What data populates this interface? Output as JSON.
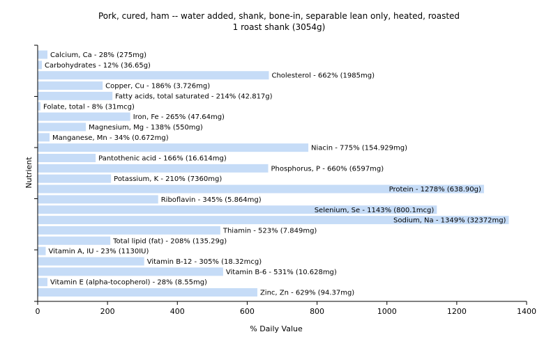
{
  "chart_data": {
    "type": "bar",
    "orientation": "horizontal",
    "title": "Pork, cured, ham -- water added, shank, bone-in, separable lean only, heated, roasted",
    "subtitle": "1 roast shank (3054g)",
    "xlabel": "% Daily Value",
    "ylabel": "Nutrient",
    "xlim": [
      0,
      1400
    ],
    "xticks": [
      0,
      200,
      400,
      600,
      800,
      1000,
      1200,
      1400
    ],
    "grid": false,
    "bar_color": "#c6dcf7",
    "categories": [
      "Calcium, Ca",
      "Carbohydrates",
      "Cholesterol",
      "Copper, Cu",
      "Fatty acids, total saturated",
      "Folate, total",
      "Iron, Fe",
      "Magnesium, Mg",
      "Manganese, Mn",
      "Niacin",
      "Pantothenic acid",
      "Phosphorus, P",
      "Potassium, K",
      "Protein",
      "Riboflavin",
      "Selenium, Se",
      "Sodium, Na",
      "Thiamin",
      "Total lipid (fat)",
      "Vitamin A, IU",
      "Vitamin B-12",
      "Vitamin B-6",
      "Vitamin E (alpha-tocopherol)",
      "Zinc, Zn"
    ],
    "values": [
      28,
      12,
      662,
      186,
      214,
      8,
      265,
      138,
      34,
      775,
      166,
      660,
      210,
      1278,
      345,
      1143,
      1349,
      523,
      208,
      23,
      305,
      531,
      28,
      629
    ],
    "labels": [
      "Calcium, Ca - 28% (275mg)",
      "Carbohydrates - 12% (36.65g)",
      "Cholesterol - 662% (1985mg)",
      "Copper, Cu - 186% (3.726mg)",
      "Fatty acids, total saturated - 214% (42.817g)",
      "Folate, total - 8% (31mcg)",
      "Iron, Fe - 265% (47.64mg)",
      "Magnesium, Mg - 138% (550mg)",
      "Manganese, Mn - 34% (0.672mg)",
      "Niacin - 775% (154.929mg)",
      "Pantothenic acid - 166% (16.614mg)",
      "Phosphorus, P - 660% (6597mg)",
      "Potassium, K - 210% (7360mg)",
      "Protein - 1278% (638.90g)",
      "Riboflavin - 345% (5.864mg)",
      "Selenium, Se - 1143% (800.1mcg)",
      "Sodium, Na - 1349% (32372mg)",
      "Thiamin - 523% (7.849mg)",
      "Total lipid (fat) - 208% (135.29g)",
      "Vitamin A, IU - 23% (1130IU)",
      "Vitamin B-12 - 305% (18.32mcg)",
      "Vitamin B-6 - 531% (10.628mg)",
      "Vitamin E (alpha-tocopherol) - 28% (8.55mg)",
      "Zinc, Zn - 629% (94.37mg)"
    ]
  }
}
